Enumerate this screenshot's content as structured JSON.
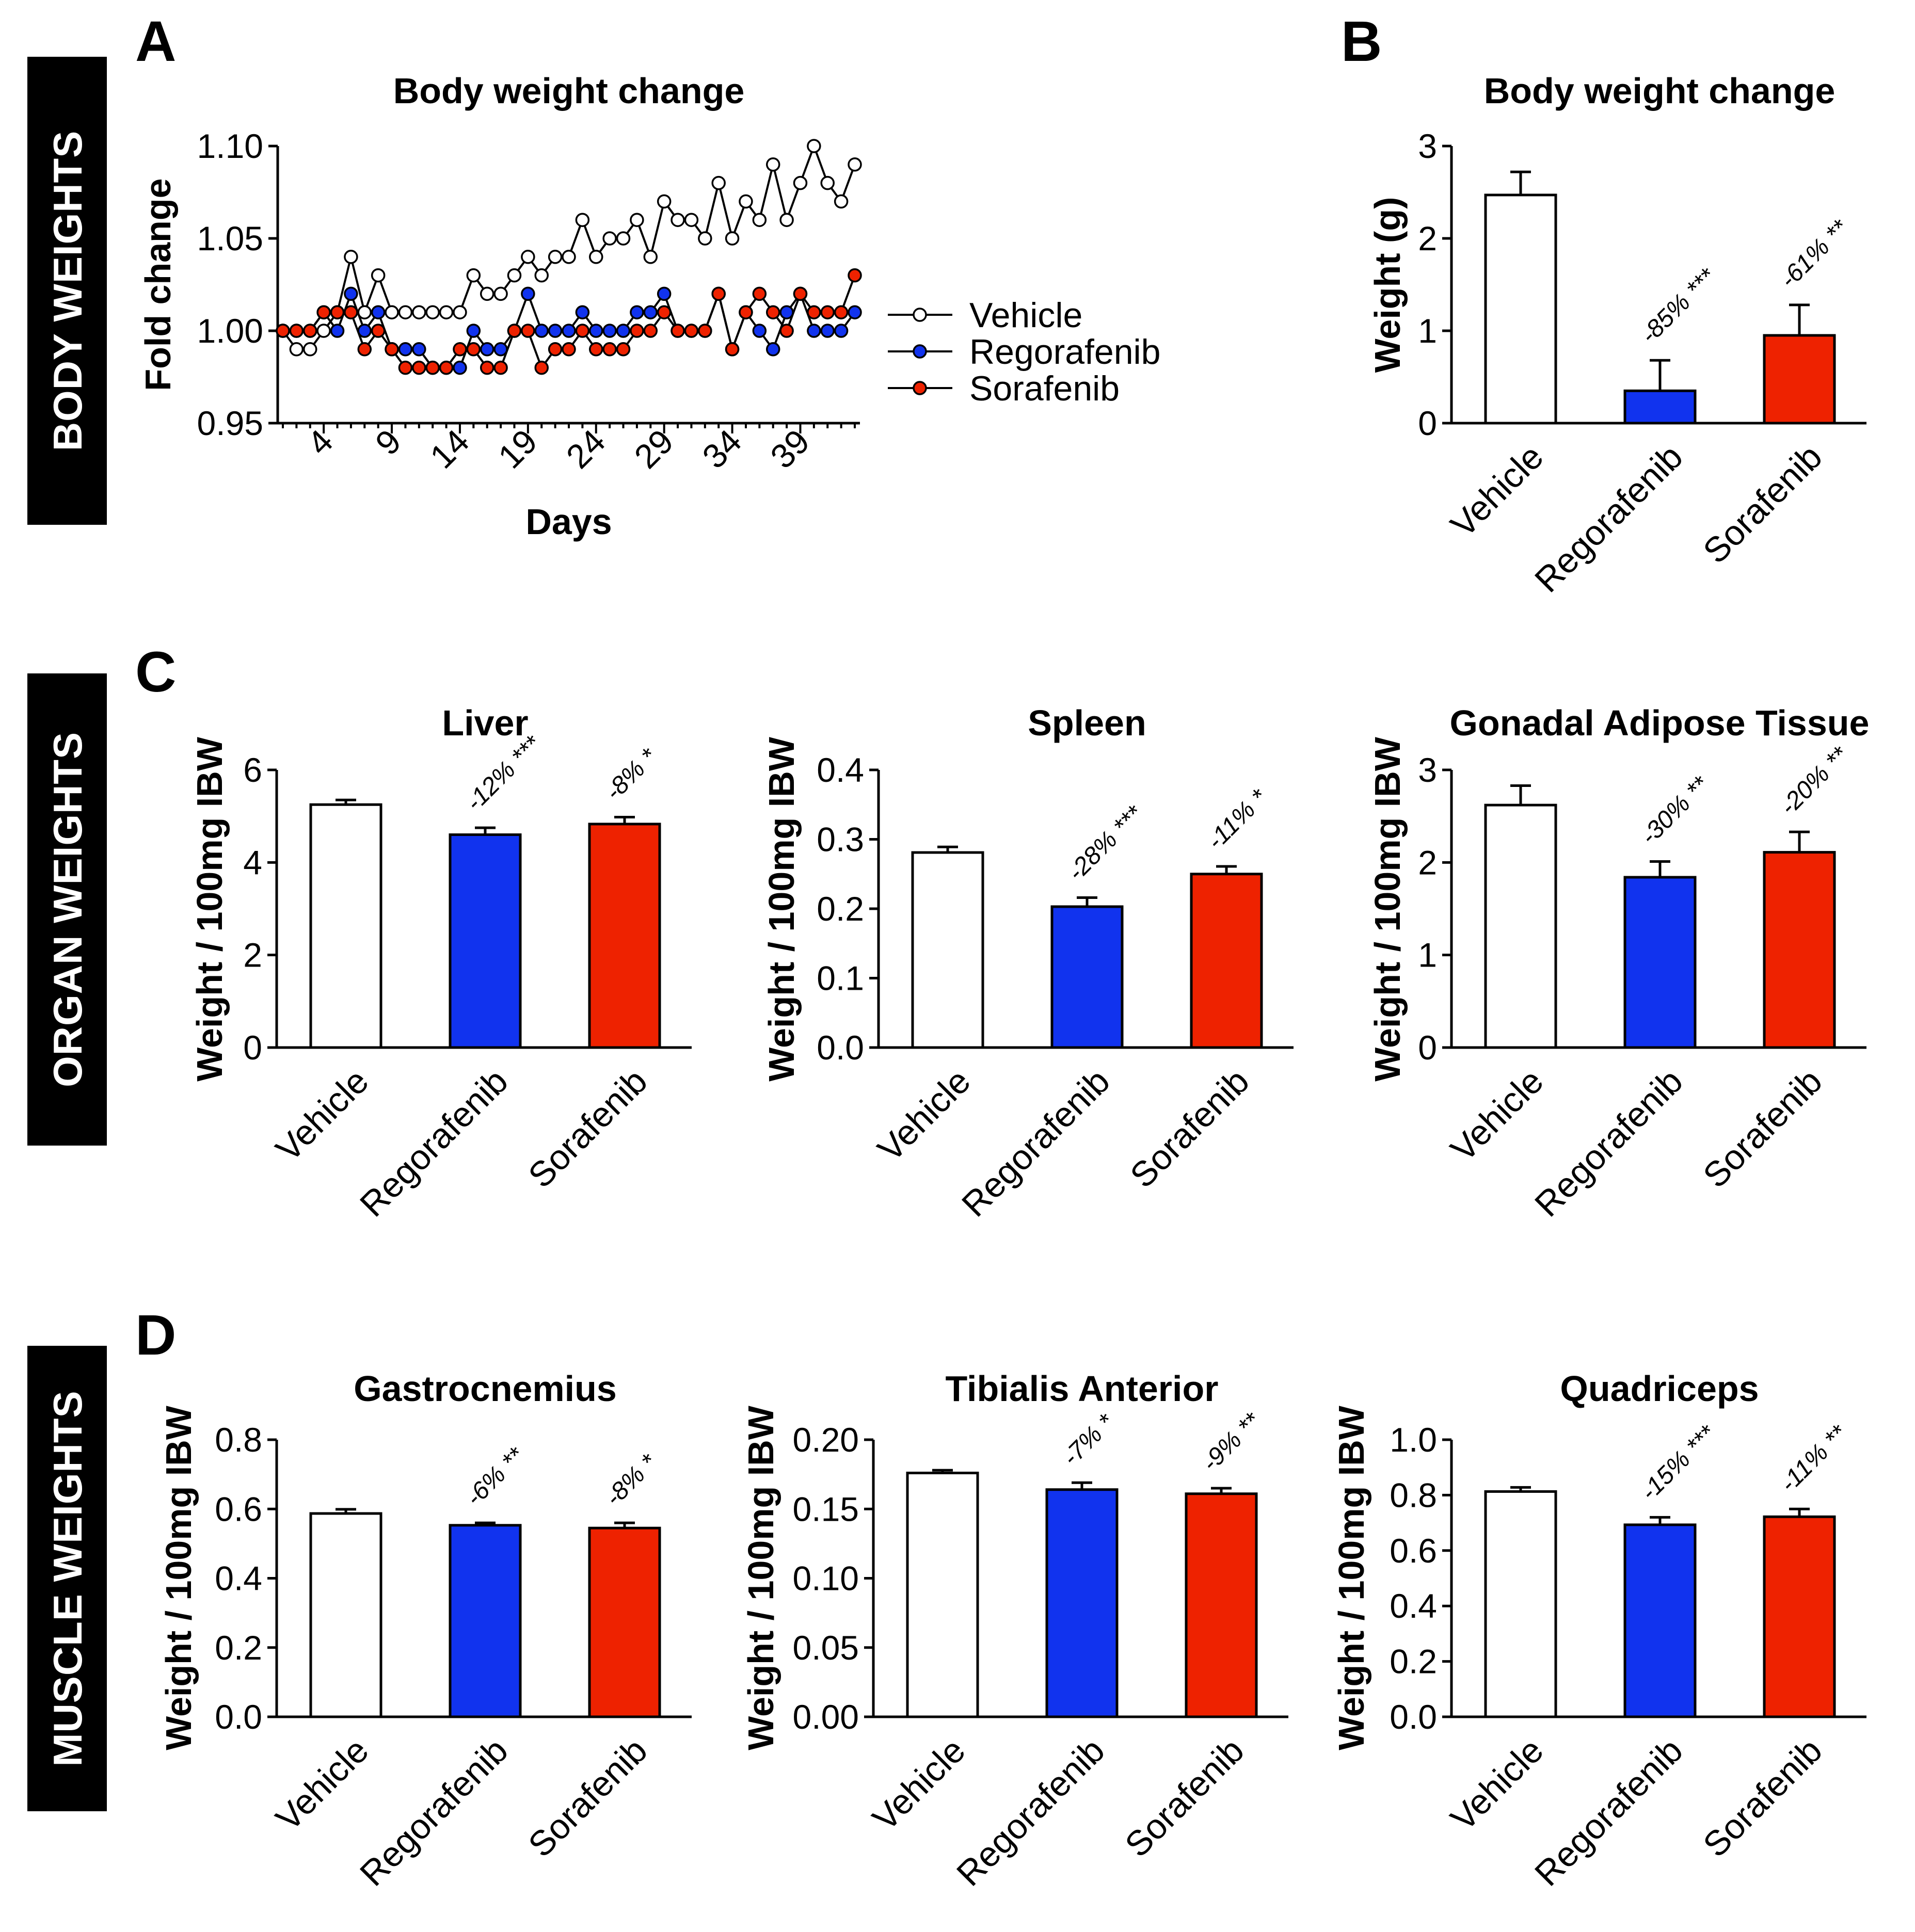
{
  "side_labels": {
    "body": "BODY WEIGHTS",
    "organ": "ORGAN WEIGHTS",
    "muscle": "MUSCLE WEIGHTS"
  },
  "panel_letters": {
    "a": "A",
    "b": "B",
    "c": "C",
    "d": "D"
  },
  "colors": {
    "vehicle": "#ffffff",
    "regorafenib": "#1133ee",
    "sorafenib": "#ee2200",
    "stroke": "#000000"
  },
  "chart_data": [
    {
      "id": "A",
      "type": "line",
      "title": "Body weight change",
      "xlabel": "Days",
      "ylabel": "Fold change",
      "ylim": [
        0.95,
        1.1
      ],
      "yticks": [
        "0.95",
        "1.00",
        "1.05",
        "1.10"
      ],
      "xticks": [
        "4",
        "9",
        "14",
        "19",
        "24",
        "29",
        "34",
        "39"
      ],
      "x": [
        1,
        2,
        3,
        4,
        5,
        6,
        7,
        8,
        9,
        10,
        11,
        12,
        13,
        14,
        15,
        16,
        17,
        18,
        19,
        20,
        21,
        22,
        23,
        24,
        25,
        26,
        27,
        28,
        29,
        30,
        31,
        32,
        33,
        34,
        35,
        36,
        37,
        38,
        39,
        40,
        41,
        42,
        43
      ],
      "series": [
        {
          "name": "Vehicle",
          "color": "#ffffff",
          "values": [
            1.0,
            0.99,
            0.99,
            1.0,
            1.01,
            1.04,
            1.01,
            1.03,
            1.01,
            1.01,
            1.01,
            1.01,
            1.01,
            1.01,
            1.03,
            1.02,
            1.02,
            1.03,
            1.04,
            1.03,
            1.04,
            1.04,
            1.06,
            1.04,
            1.05,
            1.05,
            1.06,
            1.04,
            1.07,
            1.06,
            1.06,
            1.05,
            1.08,
            1.05,
            1.07,
            1.06,
            1.09,
            1.06,
            1.08,
            1.1,
            1.08,
            1.07,
            1.09
          ]
        },
        {
          "name": "Regorafenib",
          "color": "#1133ee",
          "values": [
            1.0,
            1.0,
            1.0,
            1.01,
            1.0,
            1.02,
            1.0,
            1.01,
            0.99,
            0.99,
            0.99,
            0.98,
            0.98,
            0.98,
            1.0,
            0.99,
            0.99,
            1.0,
            1.02,
            1.0,
            1.0,
            1.0,
            1.01,
            1.0,
            1.0,
            1.0,
            1.01,
            1.01,
            1.02,
            1.0,
            1.0,
            1.0,
            1.02,
            0.99,
            1.01,
            1.0,
            0.99,
            1.01,
            1.02,
            1.0,
            1.0,
            1.0,
            1.01
          ]
        },
        {
          "name": "Sorafenib",
          "color": "#ee2200",
          "values": [
            1.0,
            1.0,
            1.0,
            1.01,
            1.01,
            1.01,
            0.99,
            1.0,
            0.99,
            0.98,
            0.98,
            0.98,
            0.98,
            0.99,
            0.99,
            0.98,
            0.98,
            1.0,
            1.0,
            0.98,
            0.99,
            0.99,
            1.0,
            0.99,
            0.99,
            0.99,
            1.0,
            1.0,
            1.01,
            1.0,
            1.0,
            1.0,
            1.02,
            0.99,
            1.01,
            1.02,
            1.01,
            1.0,
            1.02,
            1.01,
            1.01,
            1.01,
            1.03
          ]
        }
      ]
    },
    {
      "id": "B",
      "type": "bar",
      "title": "Body weight change",
      "ylabel": "Weight (g)",
      "ylim": [
        0,
        3
      ],
      "yticks": [
        "0",
        "1",
        "2",
        "3"
      ],
      "categories": [
        "Vehicle",
        "Regorafenib",
        "Sorafenib"
      ],
      "values": [
        2.47,
        0.35,
        0.95
      ],
      "errors": [
        0.25,
        0.33,
        0.33
      ],
      "annotations": [
        "",
        "-85% ***",
        "-61% **"
      ]
    },
    {
      "id": "C-liver",
      "type": "bar",
      "title": "Liver",
      "ylabel": "Weight / 100mg IBW",
      "ylim": [
        0,
        6
      ],
      "yticks": [
        "0",
        "2",
        "4",
        "6"
      ],
      "categories": [
        "Vehicle",
        "Regorafenib",
        "Sorafenib"
      ],
      "values": [
        5.25,
        4.6,
        4.83
      ],
      "errors": [
        0.1,
        0.15,
        0.15
      ],
      "annotations": [
        "",
        "-12% ***",
        "-8% *"
      ]
    },
    {
      "id": "C-spleen",
      "type": "bar",
      "title": "Spleen",
      "ylabel": "Weight / 100mg IBW",
      "ylim": [
        0,
        0.4
      ],
      "yticks": [
        "0.0",
        "0.1",
        "0.2",
        "0.3",
        "0.4"
      ],
      "categories": [
        "Vehicle",
        "Regorafenib",
        "Sorafenib"
      ],
      "values": [
        0.281,
        0.203,
        0.25
      ],
      "errors": [
        0.008,
        0.013,
        0.011
      ],
      "annotations": [
        "",
        "-28% ***",
        "-11% *"
      ]
    },
    {
      "id": "C-gonadal",
      "type": "bar",
      "title": "Gonadal Adipose Tissue",
      "ylabel": "Weight / 100mg IBW",
      "ylim": [
        0,
        3
      ],
      "yticks": [
        "0",
        "1",
        "2",
        "3"
      ],
      "categories": [
        "Vehicle",
        "Regorafenib",
        "Sorafenib"
      ],
      "values": [
        2.62,
        1.84,
        2.11
      ],
      "errors": [
        0.21,
        0.17,
        0.22
      ],
      "annotations": [
        "",
        "-30% **",
        "-20% **"
      ]
    },
    {
      "id": "D-gastro",
      "type": "bar",
      "title": "Gastrocnemius",
      "ylabel": "Weight / 100mg IBW",
      "ylim": [
        0,
        0.8
      ],
      "yticks": [
        "0.0",
        "0.2",
        "0.4",
        "0.6",
        "0.8"
      ],
      "categories": [
        "Vehicle",
        "Regorafenib",
        "Sorafenib"
      ],
      "values": [
        0.587,
        0.553,
        0.545
      ],
      "errors": [
        0.012,
        0.007,
        0.015
      ],
      "annotations": [
        "",
        "-6% **",
        "-8% *"
      ]
    },
    {
      "id": "D-tibialis",
      "type": "bar",
      "title": "Tibialis Anterior",
      "ylabel": "Weight / 100mg IBW",
      "ylim": [
        0,
        0.2
      ],
      "yticks": [
        "0.00",
        "0.05",
        "0.10",
        "0.15",
        "0.20"
      ],
      "categories": [
        "Vehicle",
        "Regorafenib",
        "Sorafenib"
      ],
      "values": [
        0.176,
        0.164,
        0.161
      ],
      "errors": [
        0.002,
        0.005,
        0.004
      ],
      "annotations": [
        "",
        "-7% *",
        "-9% **"
      ]
    },
    {
      "id": "D-quad",
      "type": "bar",
      "title": "Quadriceps",
      "ylabel": "Weight / 100mg IBW",
      "ylim": [
        0,
        1.0
      ],
      "yticks": [
        "0.0",
        "0.2",
        "0.4",
        "0.6",
        "0.8",
        "1.0"
      ],
      "categories": [
        "Vehicle",
        "Regorafenib",
        "Sorafenib"
      ],
      "values": [
        0.813,
        0.693,
        0.722
      ],
      "errors": [
        0.015,
        0.027,
        0.028
      ],
      "annotations": [
        "",
        "-15% ***",
        "-11% **"
      ]
    }
  ]
}
